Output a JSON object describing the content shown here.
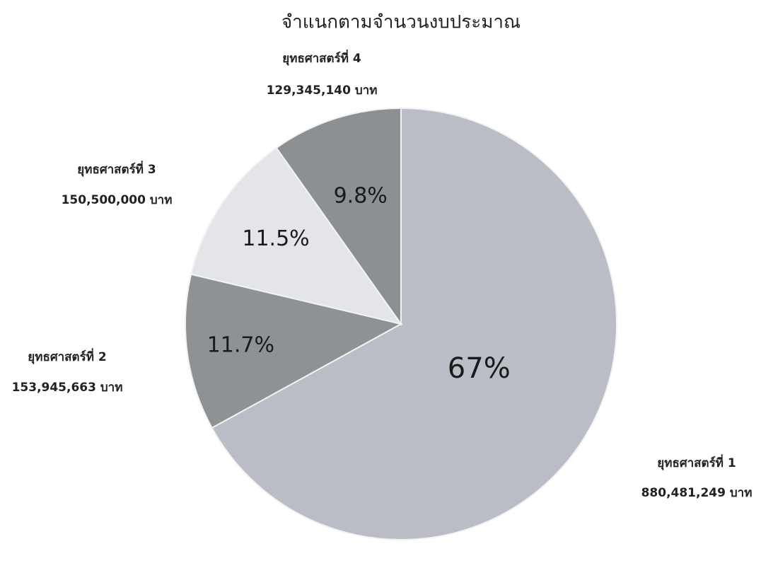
{
  "chart_data": {
    "type": "pie",
    "title": "จำแนกตามจำนวนงบประมาณ",
    "categories": [
      "ยุทธศาสตร์ที่ 1",
      "ยุทธศาสตร์ที่ 2",
      "ยุทธศาสตร์ที่ 3",
      "ยุทธศาสตร์ที่ 4"
    ],
    "values": [
      67,
      11.7,
      11.5,
      9.8
    ],
    "value_labels": [
      "67%",
      "11.7%",
      "11.5%",
      "9.8%"
    ],
    "amount_labels": [
      "880,481,249 บาท",
      "153,945,663 บาท",
      "150,500,000 บาท",
      "129,345,140 บาท"
    ],
    "colors": [
      "#babdc5",
      "#8f9295",
      "#e3e5e9",
      "#8d9093"
    ]
  }
}
